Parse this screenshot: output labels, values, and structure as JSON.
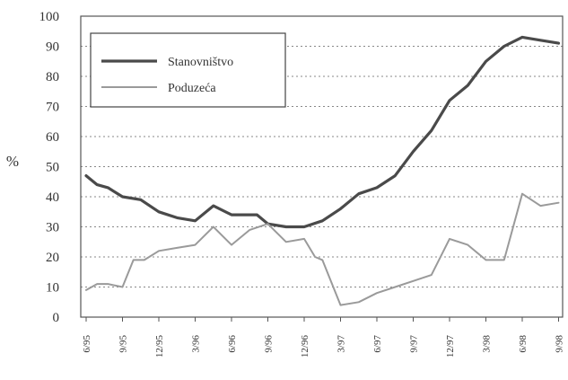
{
  "chart_data": {
    "type": "line",
    "title": "",
    "xlabel": "",
    "ylabel": "%",
    "ylim": [
      0,
      100
    ],
    "yticks": [
      "0",
      "10",
      "20",
      "30",
      "40",
      "50",
      "60",
      "70",
      "80",
      "90",
      "100"
    ],
    "grid": true,
    "legend_position": "top-left",
    "x_ticks": [
      "6/95",
      "9/95",
      "12/95",
      "3/96",
      "6/96",
      "9/96",
      "12/96",
      "3/97",
      "6/97",
      "9/97",
      "12/97",
      "3/98",
      "6/98",
      "9/98"
    ],
    "series": [
      {
        "name": "Stanovništvo",
        "color": "#4a4a4a",
        "x": [
          0,
          0.3,
          0.6,
          1,
          1.5,
          2,
          2.5,
          3,
          3.5,
          4,
          4.3,
          4.7,
          5,
          5.5,
          6,
          6.5,
          7,
          7.5,
          8,
          8.5,
          9,
          9.5,
          10,
          10.5,
          11,
          11.5,
          12,
          12.5,
          13
        ],
        "values": [
          47,
          44,
          43,
          40,
          39,
          35,
          33,
          32,
          37,
          34,
          34,
          34,
          31,
          30,
          30,
          32,
          36,
          41,
          43,
          47,
          55,
          62,
          72,
          77,
          85,
          90,
          93,
          92,
          91
        ]
      },
      {
        "name": "Poduzeća",
        "color": "#9a9a9a",
        "x": [
          0,
          0.3,
          0.6,
          1,
          1.3,
          1.6,
          2,
          2.5,
          3,
          3.5,
          4,
          4.5,
          5,
          5.5,
          6,
          6.3,
          6.5,
          7,
          7.5,
          8,
          8.5,
          9,
          9.5,
          10,
          10.5,
          11,
          11.5,
          12,
          12.5,
          13
        ],
        "values": [
          9,
          11,
          11,
          10,
          19,
          19,
          22,
          23,
          24,
          30,
          24,
          29,
          31,
          25,
          26,
          20,
          19,
          4,
          5,
          8,
          10,
          12,
          14,
          26,
          24,
          19,
          19,
          41,
          37,
          38
        ]
      }
    ]
  }
}
